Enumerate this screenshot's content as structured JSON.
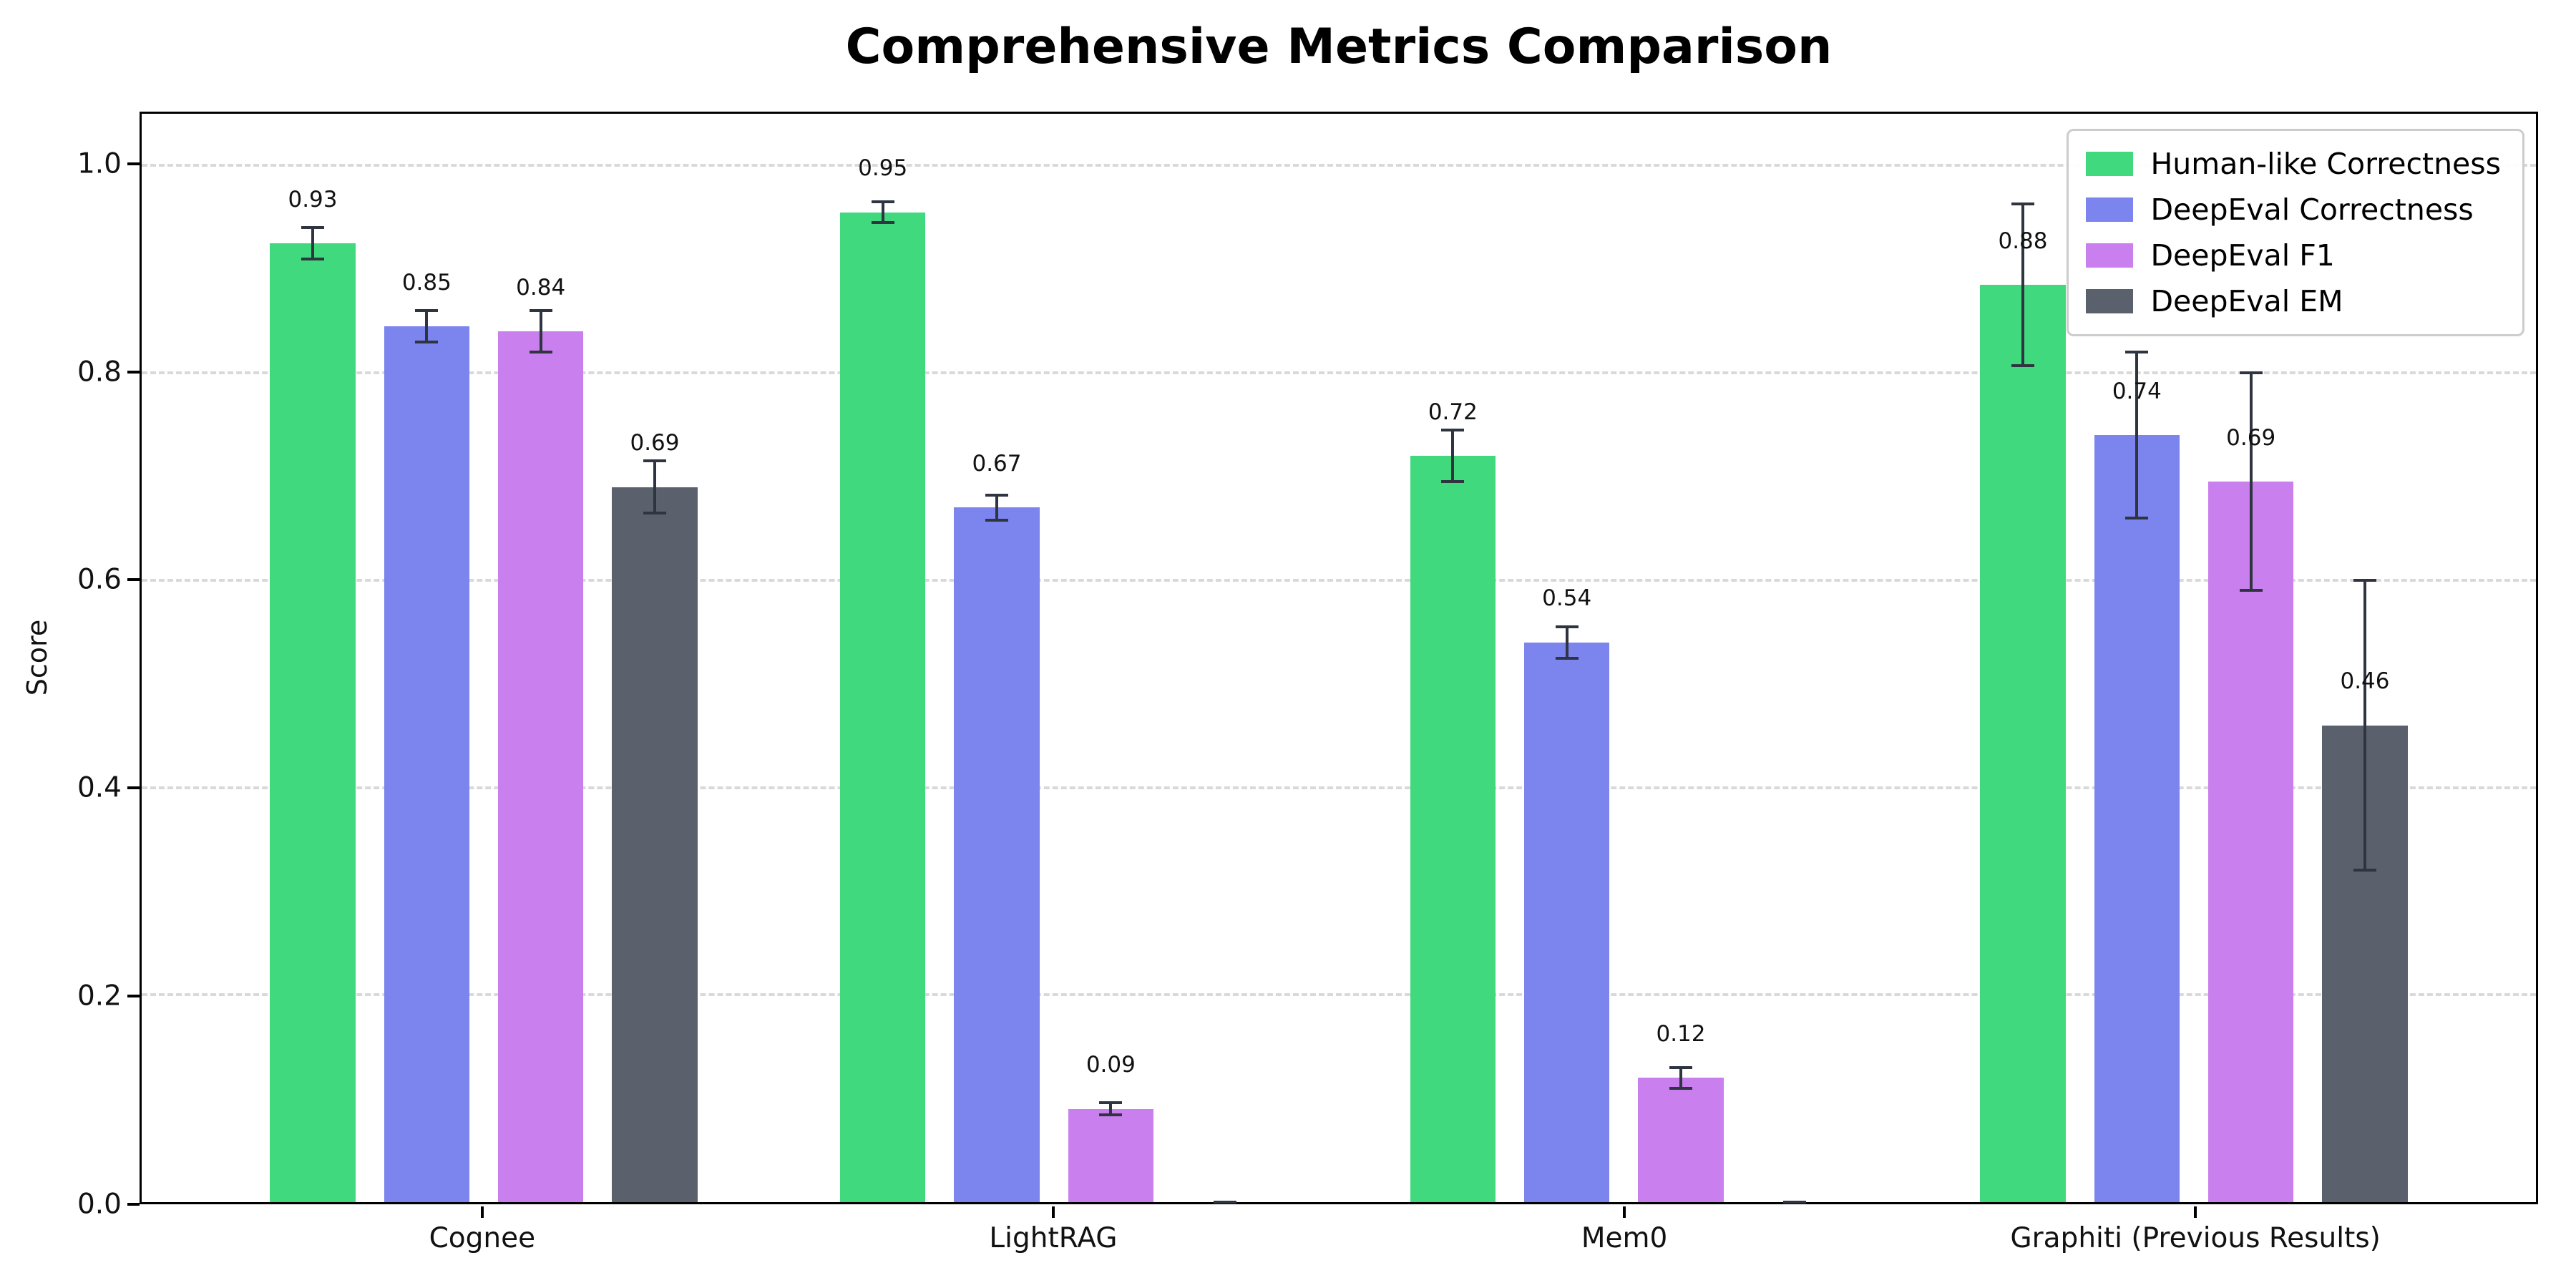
{
  "chart_data": {
    "type": "bar",
    "title": "Comprehensive Metrics Comparison",
    "ylabel": "Score",
    "xlabel": "",
    "categories": [
      "Cognee",
      "LightRAG",
      "Mem0",
      "Graphiti (Previous Results)"
    ],
    "series": [
      {
        "name": "Human-like Correctness",
        "color": "#40d97d",
        "values": [
          0.925,
          0.955,
          0.72,
          0.885
        ],
        "errors": [
          0.015,
          0.01,
          0.025,
          0.078
        ],
        "labels": [
          "0.93",
          "0.95",
          "0.72",
          "0.88"
        ]
      },
      {
        "name": "DeepEval Correctness",
        "color": "#7c84ed",
        "values": [
          0.845,
          0.67,
          0.54,
          0.74
        ],
        "errors": [
          0.015,
          0.012,
          0.015,
          0.08
        ],
        "labels": [
          "0.85",
          "0.67",
          "0.54",
          "0.74"
        ]
      },
      {
        "name": "DeepEval F1",
        "color": "#c97fee",
        "values": [
          0.84,
          0.09,
          0.12,
          0.695
        ],
        "errors": [
          0.02,
          0.006,
          0.01,
          0.105
        ],
        "labels": [
          "0.84",
          "0.09",
          "0.12",
          "0.69"
        ]
      },
      {
        "name": "DeepEval EM",
        "color": "#5b616c",
        "values": [
          0.69,
          0.0,
          0.0,
          0.46
        ],
        "errors": [
          0.025,
          0.0,
          0.0,
          0.14
        ],
        "labels": [
          "0.69",
          "",
          "",
          "0.46"
        ]
      }
    ],
    "yticks": [
      0.0,
      0.2,
      0.4,
      0.6,
      0.8,
      1.0
    ],
    "ytick_labels": [
      "0.0",
      "0.2",
      "0.4",
      "0.6",
      "0.8",
      "1.0"
    ],
    "ylim": [
      0,
      1.05
    ],
    "xlim": [
      -0.6,
      3.6
    ],
    "bar_width": 0.15,
    "bar_step": 0.2,
    "label_offset": 0.03,
    "grid": "horizontal-dashed",
    "legend_position": "upper-right",
    "error_color": "#2e3440",
    "background": "#ffffff"
  }
}
